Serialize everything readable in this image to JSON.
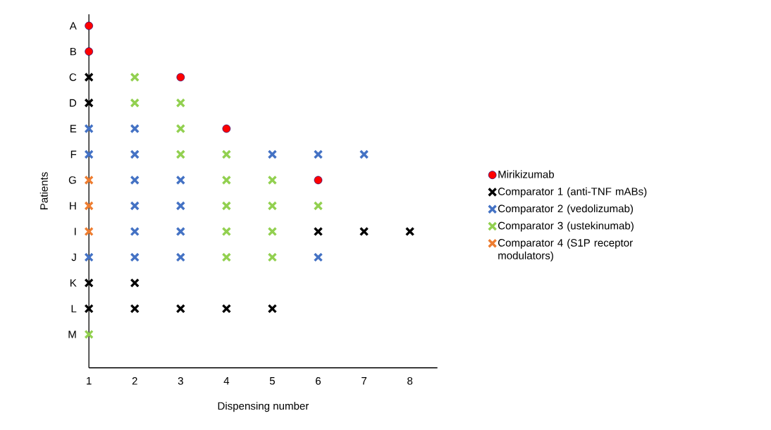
{
  "chart_data": {
    "type": "scatter",
    "orientation": "horizontal",
    "xlabel": "Dispensing number",
    "ylabel": "Patients",
    "categories": [
      "A",
      "B",
      "C",
      "D",
      "E",
      "F",
      "G",
      "H",
      "I",
      "J",
      "K",
      "L",
      "M"
    ],
    "xlim": [
      1,
      8.6
    ],
    "xticks": [
      1,
      2,
      3,
      4,
      5,
      6,
      7,
      8
    ],
    "grid": false,
    "legend": "right",
    "series": [
      {
        "name": "Mirikizumab",
        "color": "#ff0000",
        "marker": "circle",
        "values": [
          1,
          1,
          3,
          null,
          4,
          null,
          6,
          null,
          null,
          null,
          null,
          null,
          null
        ]
      },
      {
        "name": "Comparator 1 (anti-TNF mABs)",
        "color": "#000000",
        "marker": "cross",
        "values": [
          null,
          null,
          1,
          1,
          null,
          null,
          null,
          null,
          6,
          null,
          1,
          1,
          null
        ]
      },
      {
        "color": "#000000",
        "marker": "cross",
        "values": [
          null,
          null,
          null,
          null,
          null,
          null,
          null,
          null,
          7,
          null,
          2,
          2,
          null
        ]
      },
      {
        "color": "#000000",
        "marker": "cross",
        "values": [
          null,
          null,
          null,
          null,
          null,
          null,
          null,
          null,
          8,
          null,
          null,
          3,
          null
        ]
      },
      {
        "color": "#000000",
        "marker": "cross",
        "values": [
          null,
          null,
          null,
          null,
          null,
          null,
          null,
          null,
          null,
          null,
          null,
          4,
          null
        ]
      },
      {
        "color": "#000000",
        "marker": "cross",
        "values": [
          null,
          null,
          null,
          null,
          null,
          null,
          null,
          null,
          null,
          null,
          null,
          5,
          null
        ]
      },
      {
        "name": "Comparator 2 (vedolizumab)",
        "color": "#4472c4",
        "marker": "cross",
        "values": [
          null,
          null,
          null,
          null,
          1,
          1,
          2,
          2,
          2,
          1,
          null,
          null,
          null
        ]
      },
      {
        "color": "#4472c4",
        "marker": "cross",
        "values": [
          null,
          null,
          null,
          null,
          2,
          2,
          3,
          3,
          3,
          2,
          null,
          null,
          null
        ]
      },
      {
        "color": "#4472c4",
        "marker": "cross",
        "values": [
          null,
          null,
          null,
          null,
          null,
          5,
          null,
          null,
          null,
          3,
          null,
          null,
          null
        ]
      },
      {
        "color": "#4472c4",
        "marker": "cross",
        "values": [
          null,
          null,
          null,
          null,
          null,
          6,
          null,
          null,
          null,
          6,
          null,
          null,
          null
        ]
      },
      {
        "color": "#4472c4",
        "marker": "cross",
        "values": [
          null,
          null,
          null,
          null,
          null,
          7,
          null,
          null,
          null,
          null,
          null,
          null,
          null
        ]
      },
      {
        "name": "Comparator 3 (ustekinumab)",
        "color": "#92d050",
        "marker": "cross",
        "values": [
          null,
          null,
          2,
          2,
          3,
          3,
          4,
          4,
          4,
          4,
          null,
          null,
          1
        ]
      },
      {
        "color": "#92d050",
        "marker": "cross",
        "values": [
          null,
          null,
          null,
          3,
          null,
          4,
          5,
          5,
          5,
          5,
          null,
          null,
          null
        ]
      },
      {
        "color": "#92d050",
        "marker": "cross",
        "values": [
          null,
          null,
          null,
          null,
          null,
          null,
          null,
          6,
          null,
          null,
          null,
          null,
          null
        ]
      },
      {
        "name": "Comparator 4 (S1P receptor modulators)",
        "color": "#ed7d31",
        "marker": "cross",
        "values": [
          null,
          null,
          null,
          null,
          null,
          null,
          1,
          1,
          1,
          null,
          null,
          null,
          null
        ]
      }
    ]
  }
}
